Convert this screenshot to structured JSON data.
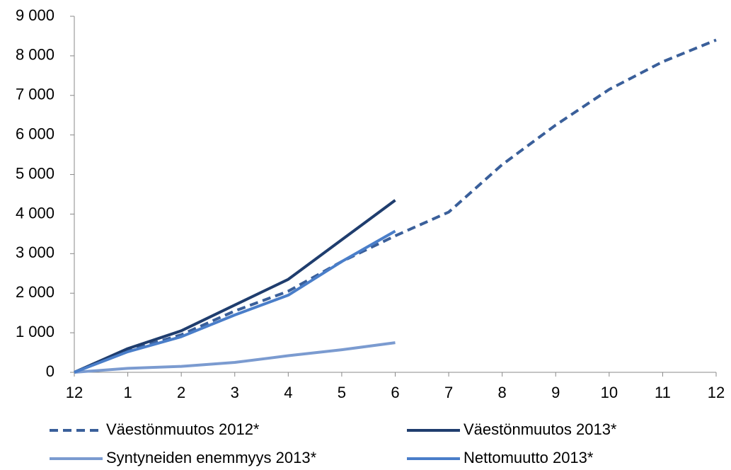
{
  "chart_data": {
    "type": "line",
    "categories": [
      "12",
      "1",
      "2",
      "3",
      "4",
      "5",
      "6",
      "7",
      "8",
      "9",
      "10",
      "11",
      "12"
    ],
    "series": [
      {
        "name": "Väestönmuutos 2012*",
        "color": "#3a5f9a",
        "style": "dashed",
        "values": [
          0,
          550,
          950,
          1550,
          2050,
          2800,
          3450,
          4050,
          5250,
          6250,
          7150,
          7850,
          8400
        ]
      },
      {
        "name": "Väestönmuutos 2013*",
        "color": "#1f3d6e",
        "style": "solid",
        "values": [
          0,
          600,
          1050,
          1700,
          2350,
          3350,
          4350,
          null,
          null,
          null,
          null,
          null,
          null
        ]
      },
      {
        "name": "Syntyneiden enemmyys 2013*",
        "color": "#7b9bd0",
        "style": "solid",
        "values": [
          0,
          100,
          150,
          250,
          420,
          570,
          750,
          null,
          null,
          null,
          null,
          null,
          null
        ]
      },
      {
        "name": "Nettomuutto 2013*",
        "color": "#4a7ec9",
        "style": "solid",
        "values": [
          0,
          520,
          900,
          1450,
          1950,
          2800,
          3570,
          null,
          null,
          null,
          null,
          null,
          null
        ]
      }
    ],
    "ylim": [
      0,
      9000
    ],
    "yticks": [
      0,
      {
        "value": 1000,
        "label": "1 000"
      },
      {
        "value": 2000,
        "label": "2 000"
      },
      {
        "value": 3000,
        "label": "3 000"
      },
      {
        "value": 4000,
        "label": "4 000"
      },
      {
        "value": 5000,
        "label": "5 000"
      },
      {
        "value": 6000,
        "label": "6 000"
      },
      {
        "value": 7000,
        "label": "7 000"
      },
      {
        "value": 8000,
        "label": "8 000"
      },
      {
        "value": 9000,
        "label": "9 000"
      }
    ],
    "grid": false,
    "legend": "bottom"
  }
}
